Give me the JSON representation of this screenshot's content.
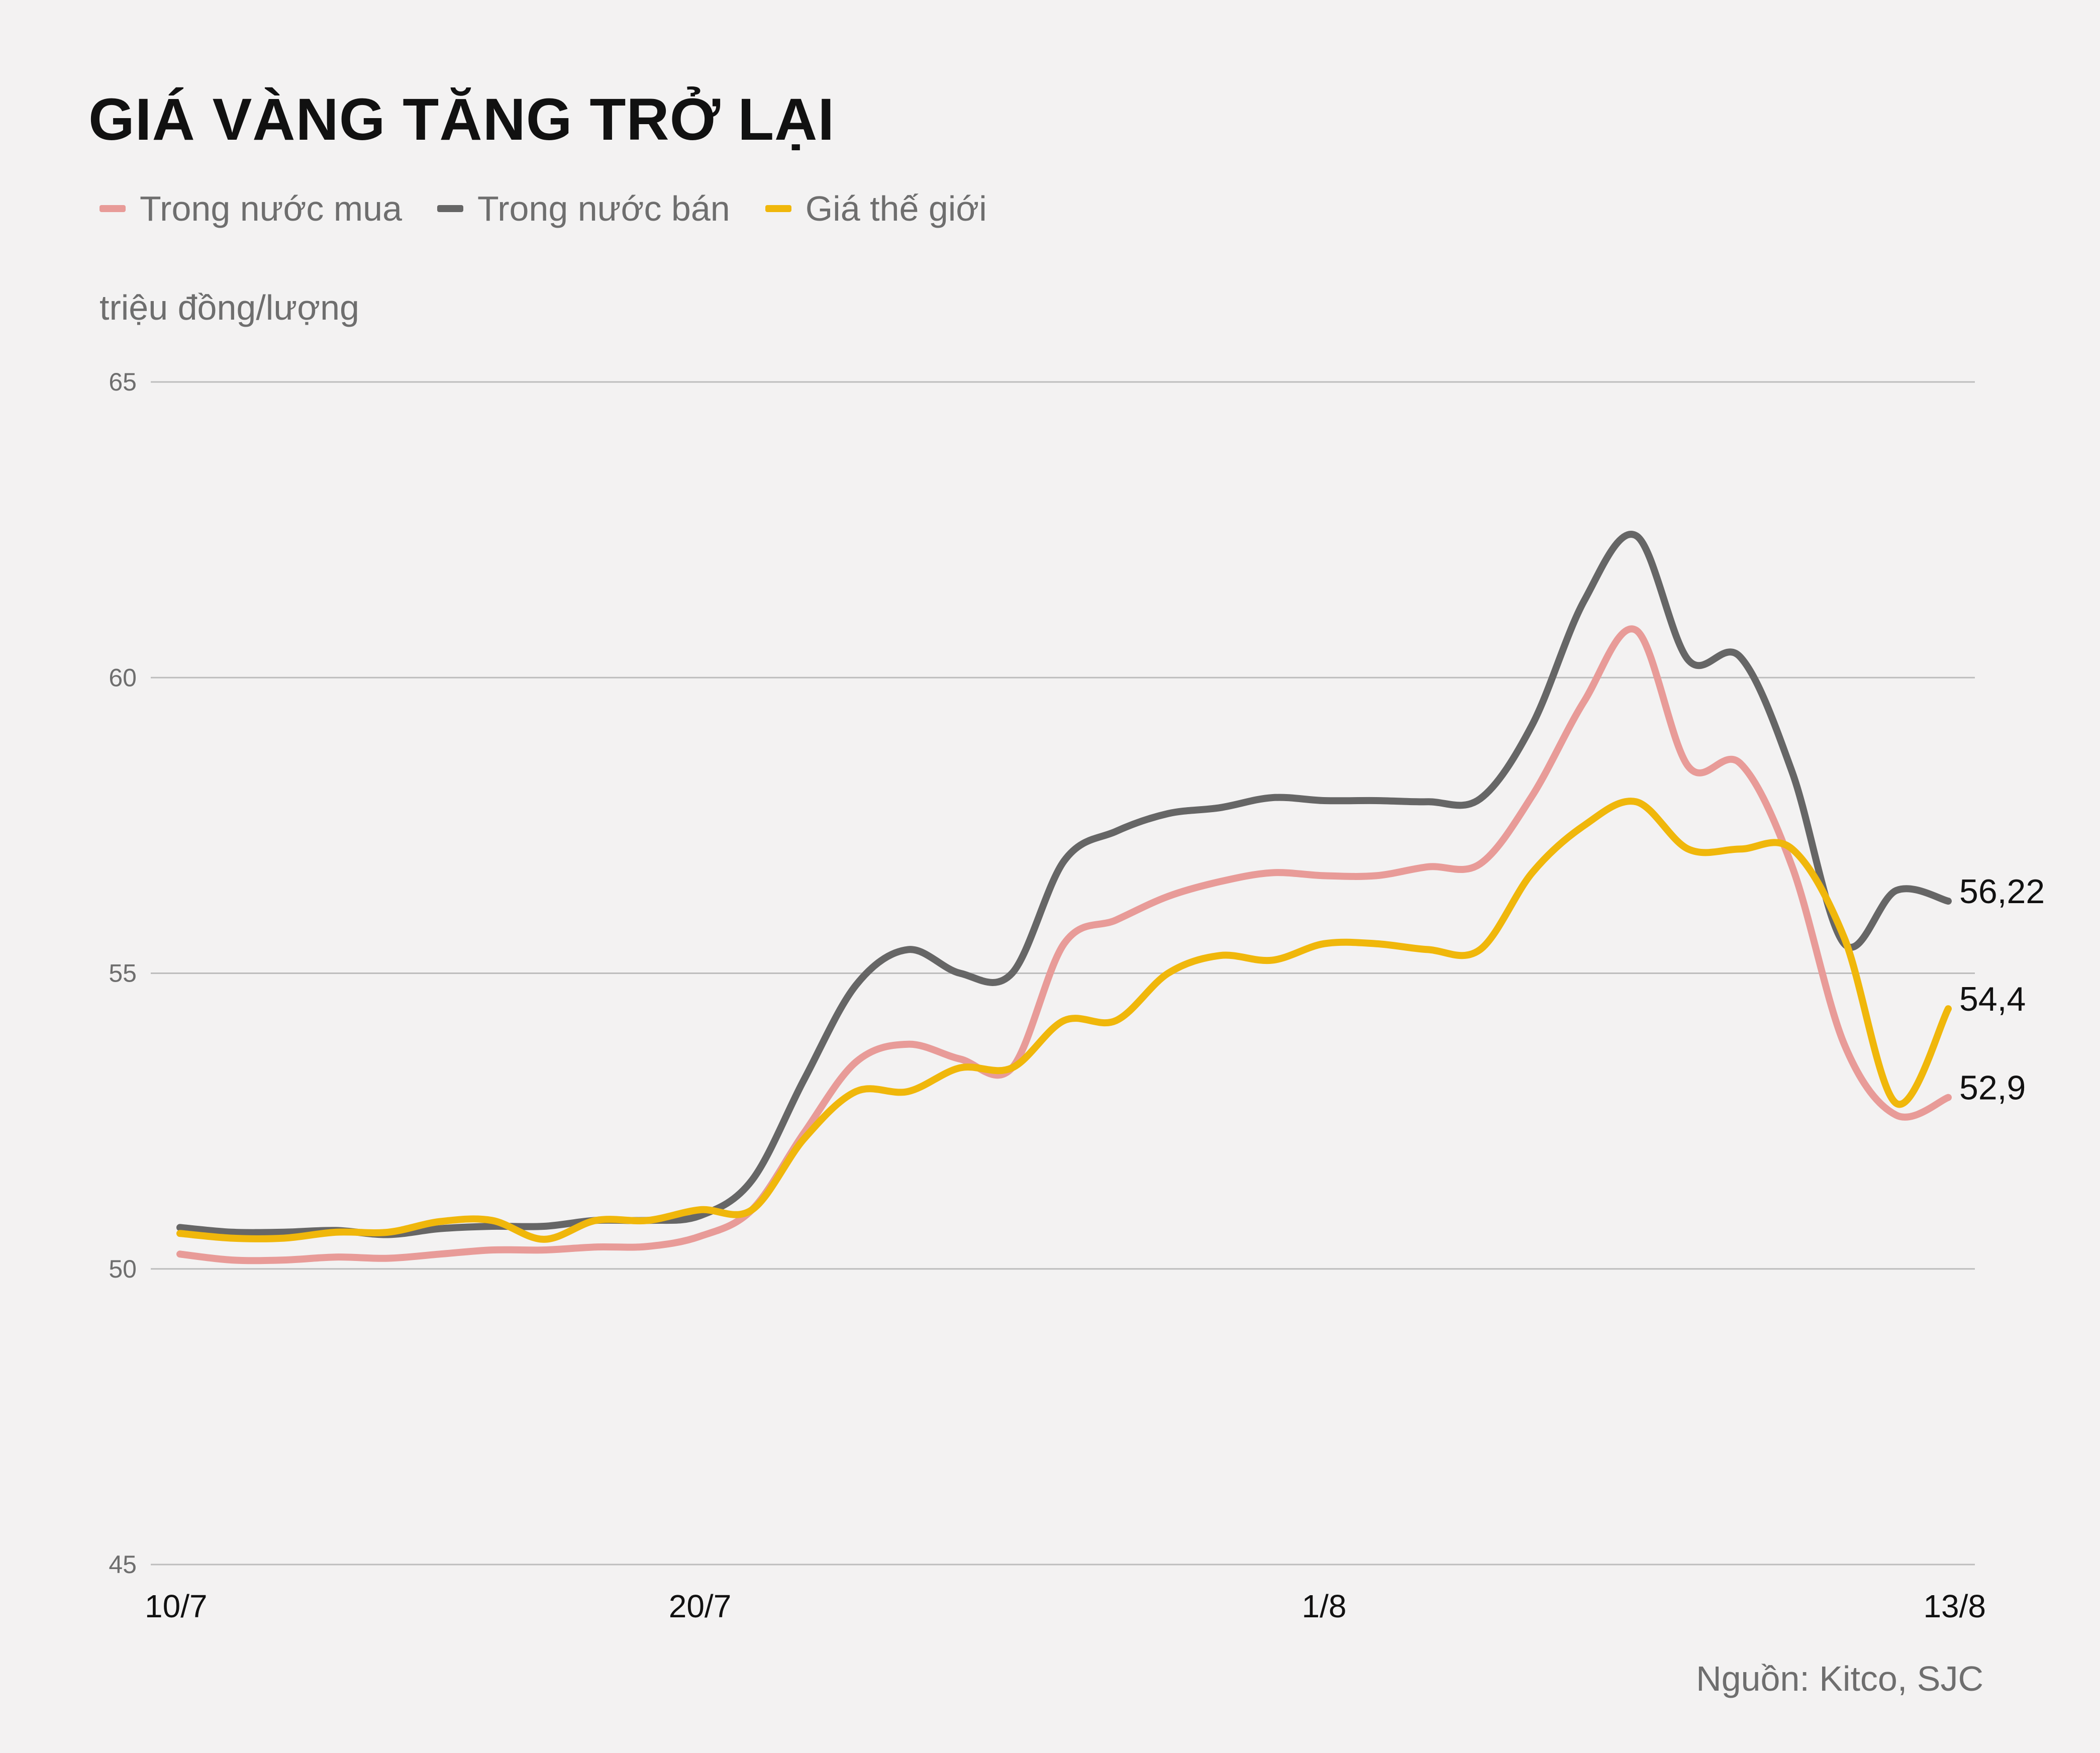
{
  "chart_data": {
    "type": "line",
    "title": "GIÁ VÀNG TĂNG TRỞ LẠI",
    "ylabel": "triệu đồng/lượng",
    "source": "Nguồn: Kitco, SJC",
    "ylim": [
      45,
      65
    ],
    "yticks": [
      "65",
      "60",
      "55",
      "50",
      "45"
    ],
    "xticks": [
      "10/7",
      "20/7",
      "1/8",
      "13/8"
    ],
    "xlim": [
      "2020-07-10",
      "2020-08-13"
    ],
    "grid": true,
    "legend_position": "top-left",
    "series": [
      {
        "name": "Trong nước mua",
        "color": "#e89b98",
        "end_label": "52,9",
        "points": [
          [
            "2020-07-10",
            50.25
          ],
          [
            "2020-07-11",
            50.15
          ],
          [
            "2020-07-12",
            50.15
          ],
          [
            "2020-07-13",
            50.2
          ],
          [
            "2020-07-14",
            50.18
          ],
          [
            "2020-07-15",
            50.25
          ],
          [
            "2020-07-16",
            50.32
          ],
          [
            "2020-07-17",
            50.32
          ],
          [
            "2020-07-18",
            50.37
          ],
          [
            "2020-07-19",
            50.38
          ],
          [
            "2020-07-20",
            50.55
          ],
          [
            "2020-07-21",
            51.0
          ],
          [
            "2020-07-22",
            52.3
          ],
          [
            "2020-07-23",
            53.5
          ],
          [
            "2020-07-24",
            53.8
          ],
          [
            "2020-07-25",
            53.55
          ],
          [
            "2020-07-26",
            53.4
          ],
          [
            "2020-07-27",
            55.5
          ],
          [
            "2020-07-28",
            55.9
          ],
          [
            "2020-07-29",
            56.3
          ],
          [
            "2020-07-30",
            56.55
          ],
          [
            "2020-07-31",
            56.7
          ],
          [
            "2020-08-01",
            56.65
          ],
          [
            "2020-08-02",
            56.65
          ],
          [
            "2020-08-03",
            56.8
          ],
          [
            "2020-08-04",
            56.85
          ],
          [
            "2020-08-05",
            58.0
          ],
          [
            "2020-08-06",
            59.6
          ],
          [
            "2020-08-07",
            60.8
          ],
          [
            "2020-08-08",
            58.5
          ],
          [
            "2020-08-09",
            58.55
          ],
          [
            "2020-08-10",
            56.8
          ],
          [
            "2020-08-11",
            53.8
          ],
          [
            "2020-08-12",
            52.6
          ],
          [
            "2020-08-13",
            52.9
          ]
        ]
      },
      {
        "name": "Trong nước bán",
        "color": "#666666",
        "end_label": "56,22",
        "points": [
          [
            "2020-07-10",
            50.7
          ],
          [
            "2020-07-11",
            50.62
          ],
          [
            "2020-07-12",
            50.62
          ],
          [
            "2020-07-13",
            50.65
          ],
          [
            "2020-07-14",
            50.58
          ],
          [
            "2020-07-15",
            50.68
          ],
          [
            "2020-07-16",
            50.72
          ],
          [
            "2020-07-17",
            50.72
          ],
          [
            "2020-07-18",
            50.82
          ],
          [
            "2020-07-19",
            50.82
          ],
          [
            "2020-07-20",
            50.9
          ],
          [
            "2020-07-21",
            51.5
          ],
          [
            "2020-07-22",
            53.2
          ],
          [
            "2020-07-23",
            54.8
          ],
          [
            "2020-07-24",
            55.4
          ],
          [
            "2020-07-25",
            55.0
          ],
          [
            "2020-07-26",
            55.0
          ],
          [
            "2020-07-27",
            56.9
          ],
          [
            "2020-07-28",
            57.4
          ],
          [
            "2020-07-29",
            57.7
          ],
          [
            "2020-07-30",
            57.8
          ],
          [
            "2020-07-31",
            57.97
          ],
          [
            "2020-08-01",
            57.92
          ],
          [
            "2020-08-02",
            57.92
          ],
          [
            "2020-08-03",
            57.9
          ],
          [
            "2020-08-04",
            57.95
          ],
          [
            "2020-08-05",
            59.2
          ],
          [
            "2020-08-06",
            61.3
          ],
          [
            "2020-08-07",
            62.4
          ],
          [
            "2020-08-08",
            60.3
          ],
          [
            "2020-08-09",
            60.35
          ],
          [
            "2020-08-10",
            58.4
          ],
          [
            "2020-08-11",
            55.5
          ],
          [
            "2020-08-12",
            56.4
          ],
          [
            "2020-08-13",
            56.22
          ]
        ]
      },
      {
        "name": "Giá thế giới",
        "color": "#f0b70b",
        "end_label": "54,4",
        "points": [
          [
            "2020-07-10",
            50.6
          ],
          [
            "2020-07-11",
            50.52
          ],
          [
            "2020-07-12",
            50.52
          ],
          [
            "2020-07-13",
            50.62
          ],
          [
            "2020-07-14",
            50.62
          ],
          [
            "2020-07-15",
            50.8
          ],
          [
            "2020-07-16",
            50.82
          ],
          [
            "2020-07-17",
            50.5
          ],
          [
            "2020-07-18",
            50.82
          ],
          [
            "2020-07-19",
            50.82
          ],
          [
            "2020-07-20",
            51.0
          ],
          [
            "2020-07-21",
            51.0
          ],
          [
            "2020-07-22",
            52.2
          ],
          [
            "2020-07-23",
            53.0
          ],
          [
            "2020-07-24",
            53.0
          ],
          [
            "2020-07-25",
            53.4
          ],
          [
            "2020-07-26",
            53.4
          ],
          [
            "2020-07-27",
            54.2
          ],
          [
            "2020-07-28",
            54.2
          ],
          [
            "2020-07-29",
            55.0
          ],
          [
            "2020-07-30",
            55.3
          ],
          [
            "2020-07-31",
            55.22
          ],
          [
            "2020-08-01",
            55.5
          ],
          [
            "2020-08-02",
            55.5
          ],
          [
            "2020-08-03",
            55.4
          ],
          [
            "2020-08-04",
            55.4
          ],
          [
            "2020-08-05",
            56.7
          ],
          [
            "2020-08-06",
            57.5
          ],
          [
            "2020-08-07",
            57.9
          ],
          [
            "2020-08-08",
            57.1
          ],
          [
            "2020-08-09",
            57.1
          ],
          [
            "2020-08-10",
            57.1
          ],
          [
            "2020-08-11",
            55.6
          ],
          [
            "2020-08-12",
            52.8
          ],
          [
            "2020-08-13",
            54.4
          ]
        ]
      }
    ]
  }
}
